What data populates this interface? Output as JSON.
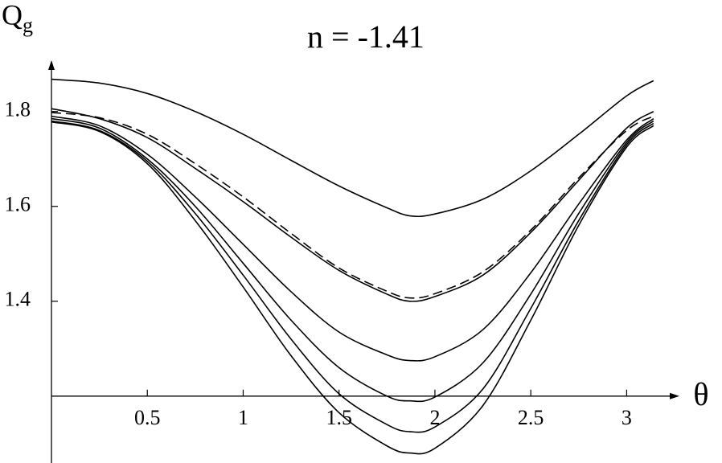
{
  "chart_data": {
    "type": "line",
    "title": "n = -1.41",
    "ylabel": "Q",
    "ylabel_subscript": "g",
    "xlabel": "θ",
    "x": [
      0,
      0.25,
      0.5,
      0.75,
      1,
      1.25,
      1.5,
      1.75,
      1.87,
      2,
      2.25,
      2.5,
      2.75,
      3,
      3.14
    ],
    "series": [
      {
        "color": "#000000",
        "dashed": false,
        "values": [
          1.868,
          1.86,
          1.838,
          1.8,
          1.752,
          1.697,
          1.643,
          1.597,
          1.58,
          1.584,
          1.615,
          1.675,
          1.752,
          1.833,
          1.865
        ]
      },
      {
        "color": "#000000",
        "dashed": true,
        "values": [
          1.798,
          1.787,
          1.752,
          1.69,
          1.62,
          1.543,
          1.47,
          1.421,
          1.407,
          1.416,
          1.462,
          1.55,
          1.66,
          1.76,
          1.79
        ]
      },
      {
        "color": "#000000",
        "dashed": false,
        "values": [
          1.806,
          1.785,
          1.745,
          1.68,
          1.61,
          1.535,
          1.465,
          1.415,
          1.4,
          1.41,
          1.455,
          1.545,
          1.655,
          1.765,
          1.8
        ]
      },
      {
        "color": "#000000",
        "dashed": false,
        "values": [
          1.79,
          1.77,
          1.71,
          1.62,
          1.52,
          1.42,
          1.335,
          1.287,
          1.275,
          1.283,
          1.34,
          1.46,
          1.605,
          1.74,
          1.785
        ]
      },
      {
        "color": "#000000",
        "dashed": false,
        "values": [
          1.785,
          1.765,
          1.7,
          1.6,
          1.48,
          1.36,
          1.26,
          1.2,
          1.19,
          1.198,
          1.27,
          1.415,
          1.585,
          1.735,
          1.78
        ]
      },
      {
        "color": "#000000",
        "dashed": false,
        "values": [
          1.78,
          1.76,
          1.695,
          1.585,
          1.455,
          1.32,
          1.205,
          1.14,
          1.125,
          1.135,
          1.215,
          1.385,
          1.57,
          1.73,
          1.775
        ]
      },
      {
        "color": "#000000",
        "dashed": false,
        "values": [
          1.778,
          1.758,
          1.69,
          1.57,
          1.43,
          1.285,
          1.165,
          1.095,
          1.08,
          1.09,
          1.18,
          1.36,
          1.56,
          1.725,
          1.77
        ]
      }
    ],
    "xlim": [
      0,
      3.275
    ],
    "ylim": [
      1.059,
      1.908
    ],
    "xticks": [
      0.5,
      1,
      1.5,
      2,
      2.5,
      3
    ],
    "yticks": [
      1.4,
      1.6,
      1.8
    ],
    "x_axis_at": 1.2,
    "grid": false
  }
}
